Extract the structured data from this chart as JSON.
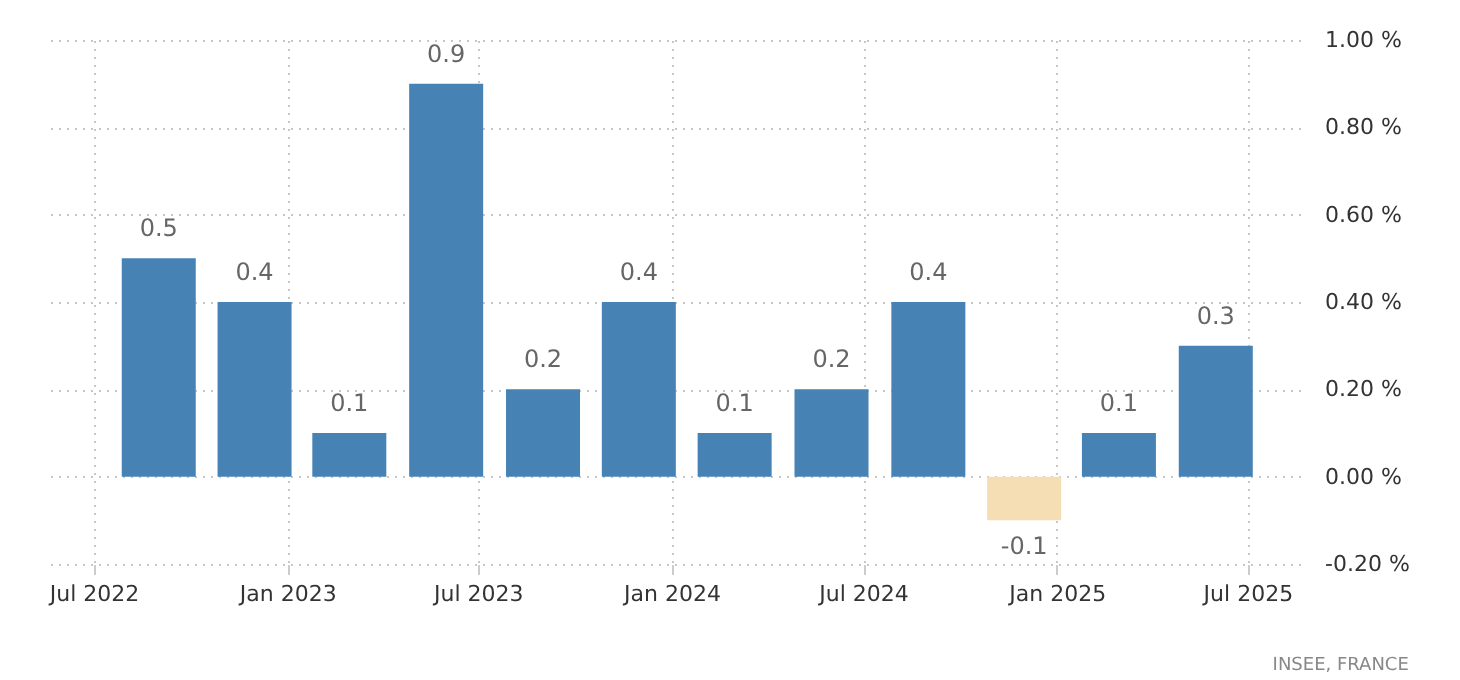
{
  "chart_data": {
    "type": "bar",
    "x": [
      "2022-09-01",
      "2022-12-01",
      "2023-03-01",
      "2023-06-01",
      "2023-09-01",
      "2023-12-01",
      "2024-03-01",
      "2024-06-01",
      "2024-09-01",
      "2024-12-01",
      "2025-03-01",
      "2025-06-01"
    ],
    "values": [
      0.5,
      0.4,
      0.1,
      0.9,
      0.2,
      0.4,
      0.1,
      0.2,
      0.4,
      -0.1,
      0.1,
      0.3
    ],
    "colors": [
      "#4682b4",
      "#4682b4",
      "#4682b4",
      "#4682b4",
      "#4682b4",
      "#4682b4",
      "#4682b4",
      "#4682b4",
      "#4682b4",
      "#f5deb3",
      "#4682b4",
      "#4682b4"
    ],
    "data_labels": true,
    "xlim": [
      "2022-05-15",
      "2025-08-20"
    ],
    "xticks": [
      {
        "value": "2022-07-01",
        "label": "Jul 2022"
      },
      {
        "value": "2023-01-01",
        "label": "Jan 2023"
      },
      {
        "value": "2023-07-01",
        "label": "Jul 2023"
      },
      {
        "value": "2024-01-01",
        "label": "Jan 2024"
      },
      {
        "value": "2024-07-01",
        "label": "Jul 2024"
      },
      {
        "value": "2025-01-01",
        "label": "Jan 2025"
      },
      {
        "value": "2025-07-01",
        "label": "Jul 2025"
      }
    ],
    "ylim": [
      -0.2,
      1.0
    ],
    "yticks": [
      {
        "value": -0.2,
        "label": "-0.20 %"
      },
      {
        "value": 0,
        "label": "0.00 %"
      },
      {
        "value": 0.2,
        "label": "0.20 %"
      },
      {
        "value": 0.4,
        "label": "0.40 %"
      },
      {
        "value": 0.6,
        "label": "0.60 %"
      },
      {
        "value": 0.8,
        "label": "0.80 %"
      },
      {
        "value": 1.0,
        "label": "1.00 %"
      }
    ],
    "grid": true,
    "annotations": [
      "INSEE, FRANCE"
    ]
  }
}
